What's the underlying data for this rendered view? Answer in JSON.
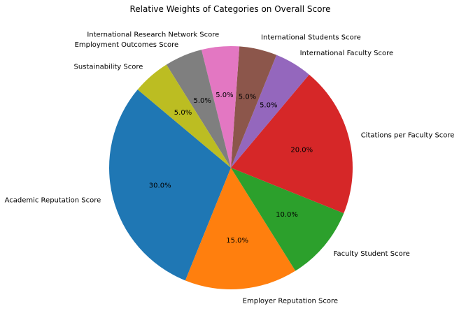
{
  "chart_data": {
    "type": "pie",
    "title": "Relative Weights of Categories on Overall Score",
    "labels": [
      "Academic Reputation Score",
      "Employer Reputation Score",
      "Faculty Student Score",
      "Citations per Faculty Score",
      "International Faculty Score",
      "International Students Score",
      "International Research Network Score",
      "Employment Outcomes Score",
      "Sustainability Score"
    ],
    "values": [
      30,
      15,
      10,
      20,
      5,
      5,
      5,
      5,
      5
    ],
    "percent_labels": [
      "30.0%",
      "15.0%",
      "10.0%",
      "20.0%",
      "5.0%",
      "5.0%",
      "5.0%",
      "5.0%",
      "5.0%"
    ],
    "colors": [
      "#1f77b4",
      "#ff7f0e",
      "#2ca02c",
      "#d62728",
      "#9467bd",
      "#8c564b",
      "#e377c2",
      "#7f7f7f",
      "#bcbd22"
    ],
    "start_angle_deg": 140,
    "direction": "counterclockwise"
  }
}
